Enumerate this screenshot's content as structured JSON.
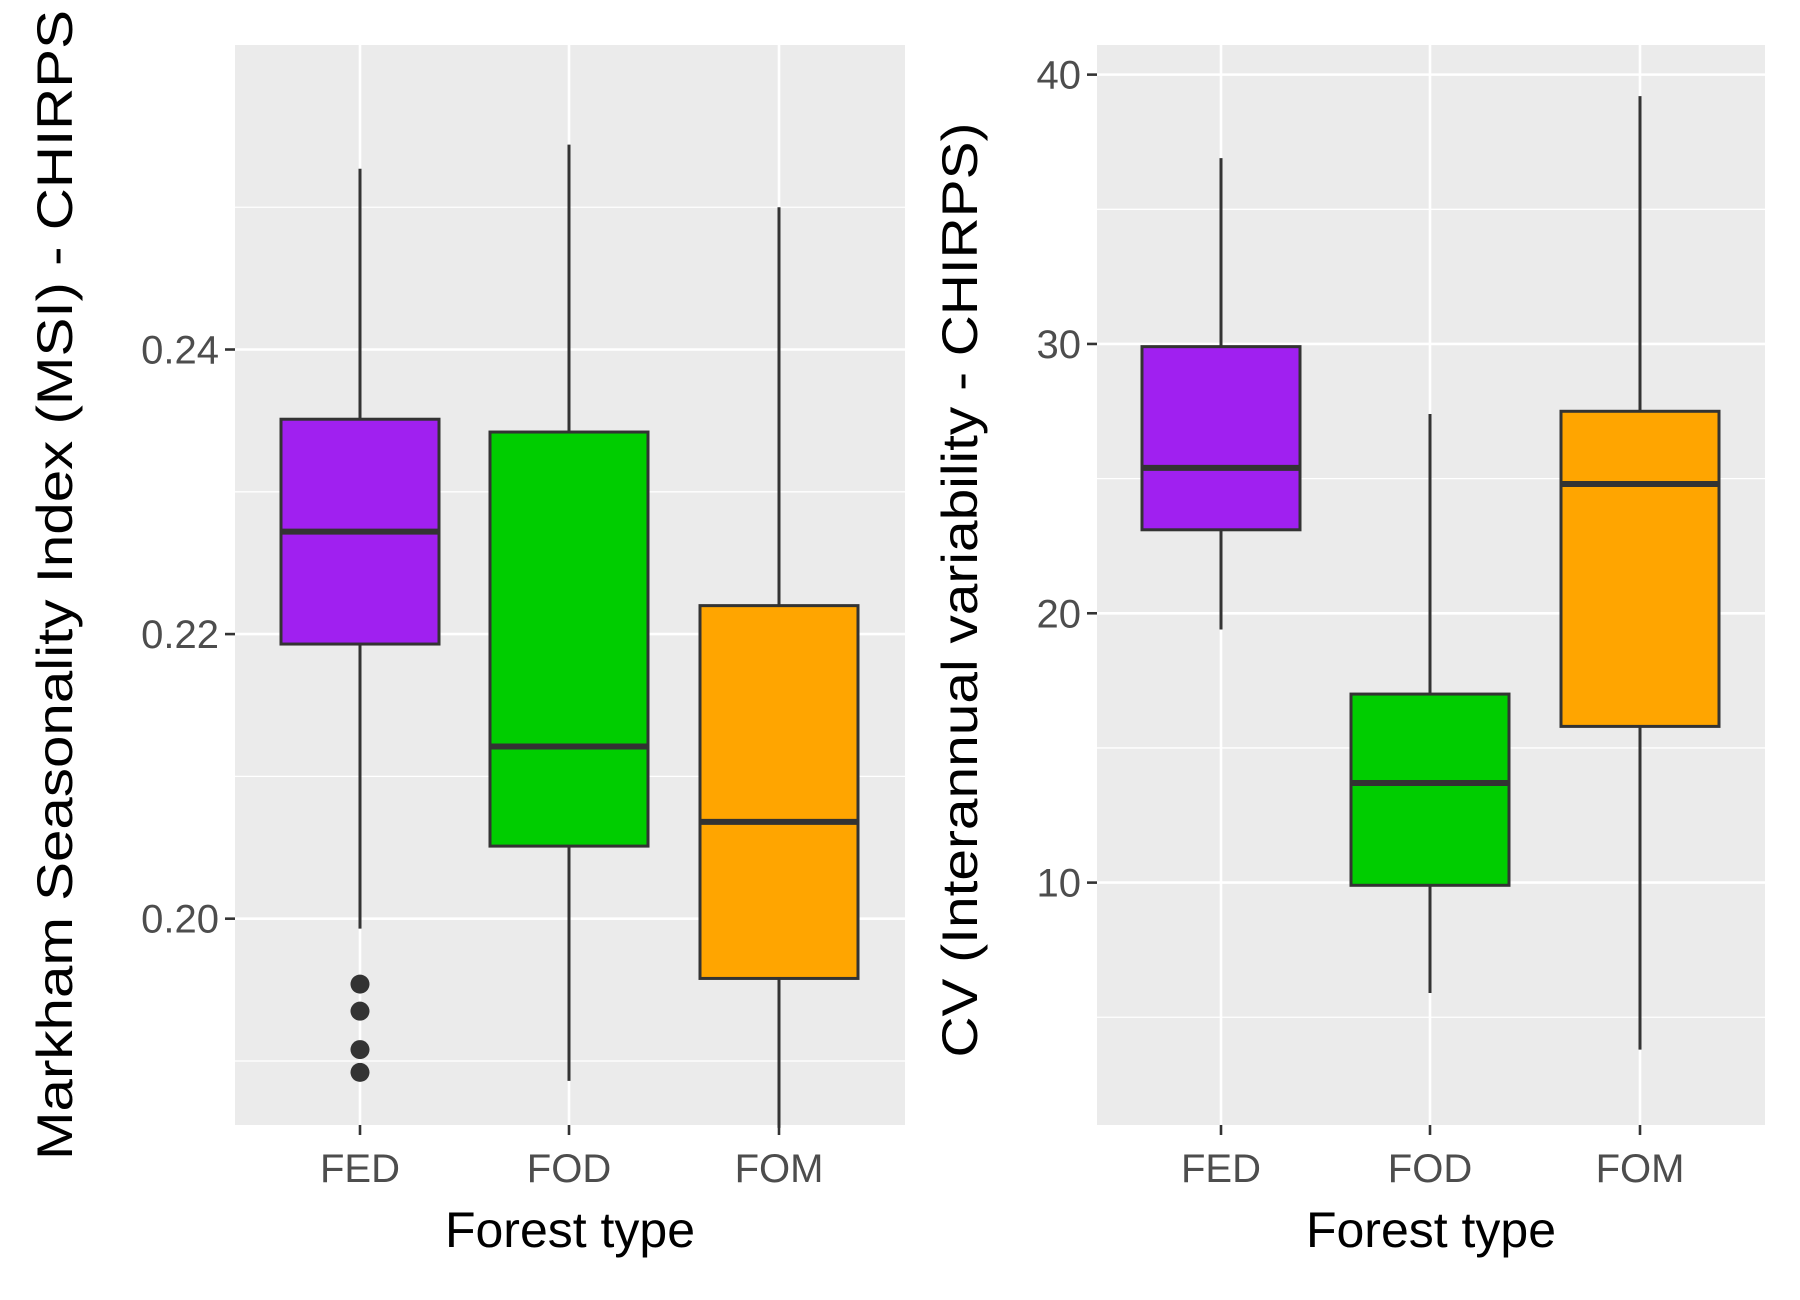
{
  "chart_data": [
    {
      "type": "boxplot",
      "xlabel": "Forest type",
      "ylabel": "Markham Seasonality Index (MSI) - CHIRPS",
      "ylim": [
        0.1855,
        0.2614
      ],
      "yticks": [
        0.2,
        0.22,
        0.24
      ],
      "ytick_labels": [
        "0.20",
        "0.22",
        "0.24"
      ],
      "grid": true,
      "categories": [
        "FED",
        "FOD",
        "FOM"
      ],
      "boxes": [
        {
          "category": "FED",
          "color": "#A020F0",
          "whisker_low": 0.1993,
          "q1": 0.2193,
          "median": 0.2272,
          "q3": 0.2351,
          "whisker_high": 0.2527,
          "outliers": [
            0.1954,
            0.1935,
            0.1908,
            0.1892
          ]
        },
        {
          "category": "FOD",
          "color": "#00CD00",
          "whisker_low": 0.1886,
          "q1": 0.2051,
          "median": 0.2121,
          "q3": 0.2342,
          "whisker_high": 0.2544,
          "outliers": []
        },
        {
          "category": "FOM",
          "color": "#FFA500",
          "whisker_low": 0.1853,
          "q1": 0.1958,
          "median": 0.2068,
          "q3": 0.222,
          "whisker_high": 0.25,
          "outliers": []
        }
      ]
    },
    {
      "type": "boxplot",
      "xlabel": "Forest type",
      "ylabel": "CV (Interannual variability - CHIRPS)",
      "ylim": [
        1.0,
        41.1
      ],
      "yticks": [
        10,
        20,
        30,
        40
      ],
      "ytick_labels": [
        "10",
        "20",
        "30",
        "40"
      ],
      "grid": true,
      "categories": [
        "FED",
        "FOD",
        "FOM"
      ],
      "boxes": [
        {
          "category": "FED",
          "color": "#A020F0",
          "whisker_low": 19.4,
          "q1": 23.1,
          "median": 25.4,
          "q3": 29.9,
          "whisker_high": 36.9,
          "outliers": []
        },
        {
          "category": "FOD",
          "color": "#00CD00",
          "whisker_low": 5.9,
          "q1": 9.9,
          "median": 13.7,
          "q3": 17.0,
          "whisker_high": 27.4,
          "outliers": []
        },
        {
          "category": "FOM",
          "color": "#FFA500",
          "whisker_low": 3.8,
          "q1": 15.8,
          "median": 24.8,
          "q3": 27.5,
          "whisker_high": 39.2,
          "outliers": []
        }
      ]
    }
  ]
}
